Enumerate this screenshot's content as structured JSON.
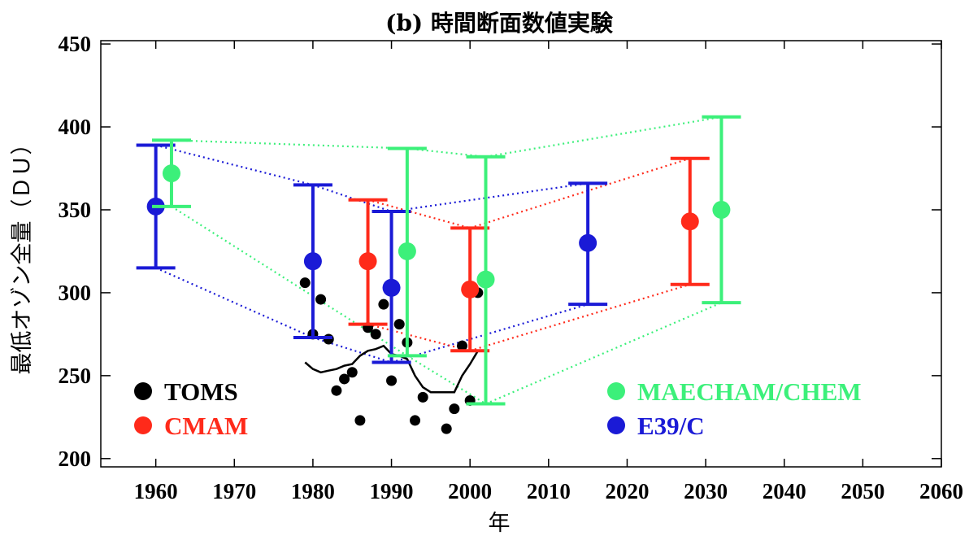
{
  "title": "(b) 時間断面数値実験",
  "chart_data": {
    "type": "scatter",
    "title": "(b) 時間断面数値実験",
    "xlabel": "年",
    "ylabel": "最低オゾン全量（ＤＵ）",
    "xlim": [
      1953,
      2060
    ],
    "ylim": [
      195,
      452
    ],
    "xticks": [
      "1960",
      "1970",
      "1980",
      "1990",
      "2000",
      "2010",
      "2020",
      "2030",
      "2040",
      "2050",
      "2060"
    ],
    "yticks": [
      "200",
      "250",
      "300",
      "350",
      "400",
      "450"
    ],
    "grid": false,
    "legend": {
      "left_placement": "bottom-left",
      "right_placement": "bottom-right",
      "left": [
        {
          "label": "TOMS",
          "color": "#000000"
        },
        {
          "label": "CMAM",
          "color": "#ff2a1a"
        }
      ],
      "right": [
        {
          "label": "MAECHAM/CHEM",
          "color": "#3cf07a"
        },
        {
          "label": "E39/C",
          "color": "#1a1ad6"
        }
      ]
    },
    "series": [
      {
        "name": "TOMS",
        "color": "#000000",
        "kind": "points",
        "points": [
          {
            "x": 1979,
            "y": 306
          },
          {
            "x": 1980,
            "y": 275
          },
          {
            "x": 1981,
            "y": 296
          },
          {
            "x": 1982,
            "y": 272
          },
          {
            "x": 1983,
            "y": 241
          },
          {
            "x": 1984,
            "y": 248
          },
          {
            "x": 1985,
            "y": 252
          },
          {
            "x": 1986,
            "y": 223
          },
          {
            "x": 1987,
            "y": 279
          },
          {
            "x": 1988,
            "y": 275
          },
          {
            "x": 1989,
            "y": 293
          },
          {
            "x": 1990,
            "y": 247
          },
          {
            "x": 1991,
            "y": 281
          },
          {
            "x": 1992,
            "y": 270
          },
          {
            "x": 1993,
            "y": 223
          },
          {
            "x": 1994,
            "y": 237
          },
          {
            "x": 1997,
            "y": 218
          },
          {
            "x": 1998,
            "y": 230
          },
          {
            "x": 1999,
            "y": 268
          },
          {
            "x": 2000,
            "y": 235
          },
          {
            "x": 2001,
            "y": 300
          }
        ]
      },
      {
        "name": "TOMS smoothed",
        "color": "#000000",
        "kind": "line",
        "points": [
          {
            "x": 1979,
            "y": 258
          },
          {
            "x": 1980,
            "y": 254
          },
          {
            "x": 1981,
            "y": 252
          },
          {
            "x": 1982,
            "y": 253
          },
          {
            "x": 1983,
            "y": 254
          },
          {
            "x": 1984,
            "y": 256
          },
          {
            "x": 1985,
            "y": 257
          },
          {
            "x": 1986,
            "y": 262
          },
          {
            "x": 1987,
            "y": 265
          },
          {
            "x": 1988,
            "y": 266
          },
          {
            "x": 1989,
            "y": 268
          },
          {
            "x": 1990,
            "y": 263
          },
          {
            "x": 1991,
            "y": 262
          },
          {
            "x": 1992,
            "y": 260
          },
          {
            "x": 1993,
            "y": 250
          },
          {
            "x": 1994,
            "y": 243
          },
          {
            "x": 1995,
            "y": 240
          },
          {
            "x": 1996,
            "y": 240
          },
          {
            "x": 1997,
            "y": 240
          },
          {
            "x": 1998,
            "y": 240
          },
          {
            "x": 1999,
            "y": 250
          },
          {
            "x": 2000,
            "y": 257
          },
          {
            "x": 2001,
            "y": 265
          }
        ]
      },
      {
        "name": "E39/C",
        "color": "#1a1ad6",
        "kind": "errorbar",
        "points": [
          {
            "x": 1960,
            "y": 352,
            "low": 315,
            "high": 389
          },
          {
            "x": 1980,
            "y": 319,
            "low": 273,
            "high": 365
          },
          {
            "x": 1990,
            "y": 303,
            "low": 258,
            "high": 349
          },
          {
            "x": 2015,
            "y": 330,
            "low": 293,
            "high": 366
          }
        ]
      },
      {
        "name": "CMAM",
        "color": "#ff2a1a",
        "kind": "errorbar",
        "points": [
          {
            "x": 1987,
            "y": 319,
            "low": 281,
            "high": 356
          },
          {
            "x": 2000,
            "y": 302,
            "low": 265,
            "high": 339
          },
          {
            "x": 2028,
            "y": 343,
            "low": 305,
            "high": 381
          }
        ]
      },
      {
        "name": "MAECHAM/CHEM",
        "color": "#3cf07a",
        "kind": "errorbar",
        "points": [
          {
            "x": 1962,
            "y": 372,
            "low": 352,
            "high": 392
          },
          {
            "x": 1992,
            "y": 325,
            "low": 262,
            "high": 387
          },
          {
            "x": 2002,
            "y": 308,
            "low": 233,
            "high": 382
          },
          {
            "x": 2032,
            "y": 350,
            "low": 294,
            "high": 406
          }
        ]
      }
    ]
  }
}
